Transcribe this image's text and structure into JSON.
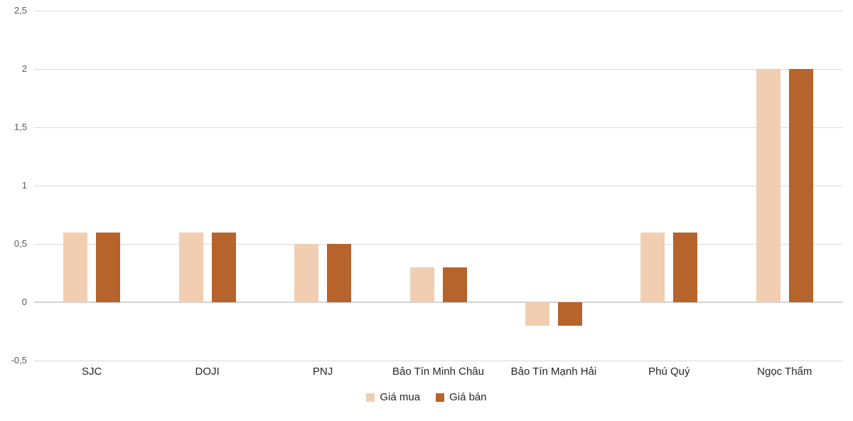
{
  "chart_data": {
    "type": "bar",
    "title": "",
    "categories": [
      "SJC",
      "DOJI",
      "PNJ",
      "Bảo Tín Minh Châu",
      "Bảo Tín Mạnh Hải",
      "Phú Quý",
      "Ngọc Thẩm"
    ],
    "series": [
      {
        "name": "Giá mua",
        "color": "#f1ceb1",
        "values": [
          0.6,
          0.6,
          0.5,
          0.3,
          -0.2,
          0.6,
          2.0
        ]
      },
      {
        "name": "Giá bán",
        "color": "#b6632c",
        "values": [
          0.6,
          0.6,
          0.5,
          0.3,
          -0.2,
          0.6,
          2.0
        ]
      }
    ],
    "ylim": [
      -0.5,
      2.5
    ],
    "ytick_step": 0.5,
    "ytick_labels": [
      "-0,5",
      "0",
      "0,5",
      "1",
      "1,5",
      "2",
      "2,5"
    ],
    "grid": true,
    "legend_position": "bottom",
    "gridline_color": "#d9d9d9"
  }
}
